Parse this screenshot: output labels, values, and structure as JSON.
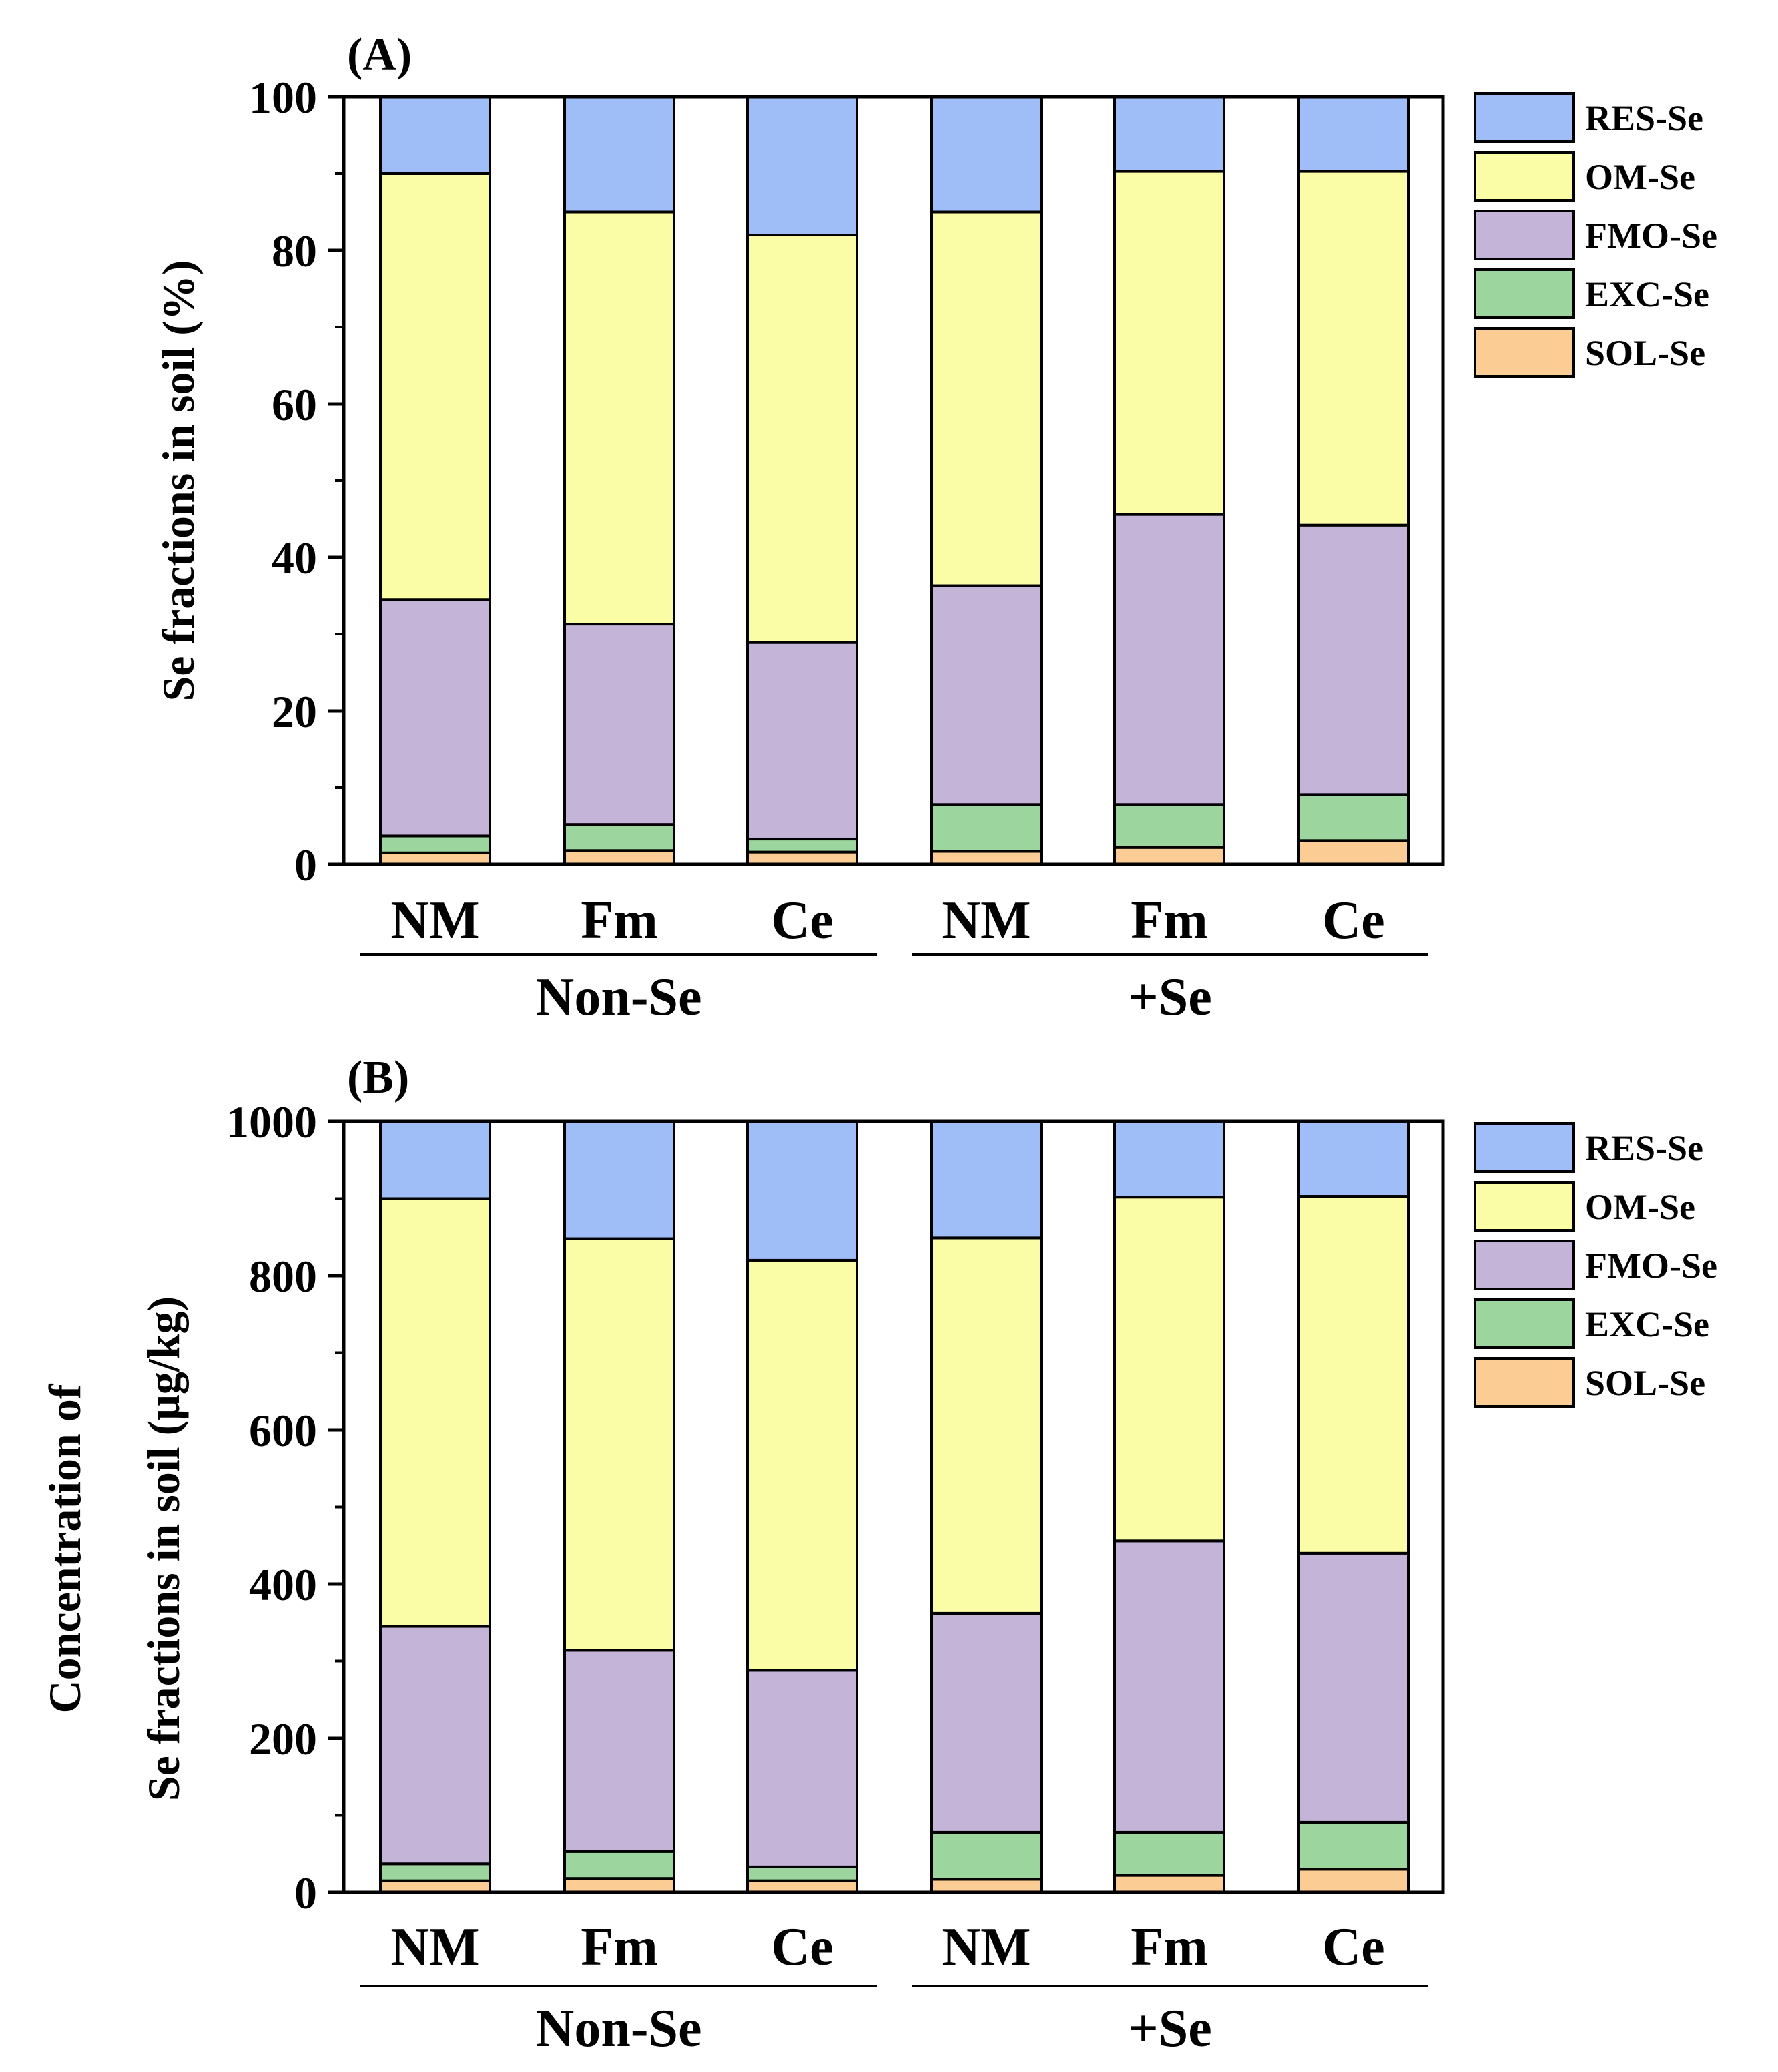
{
  "chart_data": [
    {
      "type": "bar",
      "stacked": true,
      "panel_label": "(A)",
      "ylabel": "Se fractions in soil (%)",
      "ylabel_lines": [
        "Se fractions in soil (%)"
      ],
      "ylim": [
        0,
        100
      ],
      "yticks": [
        0,
        20,
        40,
        60,
        80,
        100
      ],
      "categories": [
        "NM",
        "Fm",
        "Ce",
        "NM",
        "Fm",
        "Ce"
      ],
      "groups": [
        {
          "label": "Non-Se",
          "members": [
            0,
            1,
            2
          ]
        },
        {
          "label": "+Se",
          "members": [
            3,
            4,
            5
          ]
        }
      ],
      "series": [
        {
          "name": "SOL-Se",
          "values": [
            1.5,
            1.8,
            1.6,
            1.7,
            2.2,
            3.1
          ]
        },
        {
          "name": "EXC-Se",
          "values": [
            2.2,
            3.4,
            1.7,
            6.1,
            5.6,
            6.0
          ]
        },
        {
          "name": "FMO-Se",
          "values": [
            30.8,
            26.1,
            25.6,
            28.5,
            37.8,
            35.1
          ]
        },
        {
          "name": "OM-Se",
          "values": [
            55.5,
            53.7,
            53.1,
            48.7,
            44.7,
            46.1
          ]
        },
        {
          "name": "RES-Se",
          "values": [
            10.0,
            15.0,
            18.0,
            15.0,
            9.7,
            9.7
          ]
        }
      ],
      "legend_order": [
        "RES-Se",
        "OM-Se",
        "FMO-Se",
        "EXC-Se",
        "SOL-Se"
      ],
      "legend_position": "right"
    },
    {
      "type": "bar",
      "stacked": true,
      "panel_label": "(B)",
      "ylabel": "Concentration of Se fractions in soil (μg/kg)",
      "ylabel_lines": [
        "Concentration of",
        "Se fractions in soil (μg/kg)"
      ],
      "ylim": [
        0,
        1000
      ],
      "yticks": [
        0,
        200,
        400,
        600,
        800,
        1000
      ],
      "categories": [
        "NM",
        "Fm",
        "Ce",
        "NM",
        "Fm",
        "Ce"
      ],
      "groups": [
        {
          "label": "Non-Se",
          "members": [
            0,
            1,
            2
          ]
        },
        {
          "label": "+Se",
          "members": [
            3,
            4,
            5
          ]
        }
      ],
      "series": [
        {
          "name": "SOL-Se",
          "values": [
            15,
            18,
            15,
            17,
            22,
            30
          ]
        },
        {
          "name": "EXC-Se",
          "values": [
            22,
            35,
            18,
            61,
            56,
            61
          ]
        },
        {
          "name": "FMO-Se",
          "values": [
            308,
            261,
            255,
            284,
            378,
            349
          ]
        },
        {
          "name": "OM-Se",
          "values": [
            555,
            534,
            532,
            487,
            446,
            463
          ]
        },
        {
          "name": "RES-Se",
          "values": [
            100,
            152,
            180,
            151,
            98,
            97
          ]
        }
      ],
      "legend_order": [
        "RES-Se",
        "OM-Se",
        "FMO-Se",
        "EXC-Se",
        "SOL-Se"
      ],
      "legend_position": "right"
    }
  ],
  "colors": {
    "SOL-Se": "#fbcd94",
    "EXC-Se": "#9dd59e",
    "FMO-Se": "#c4b4d8",
    "OM-Se": "#fbfca6",
    "RES-Se": "#9fbdf7"
  }
}
